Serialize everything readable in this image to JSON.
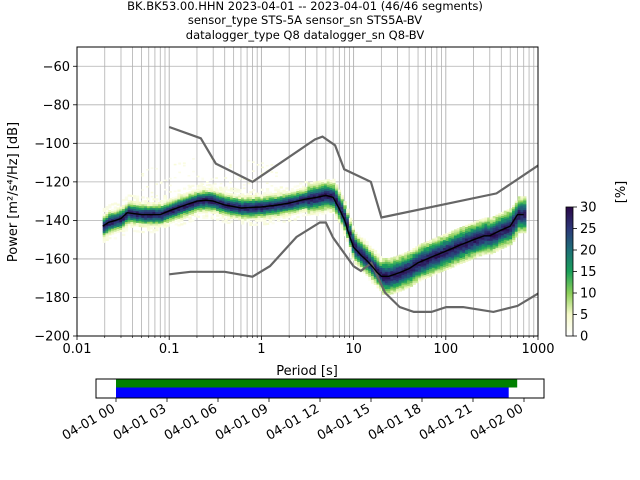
{
  "chart_data": {
    "type": "heatmap",
    "title_lines": [
      "BK.BK53.00.HHN   2023-04-01 -- 2023-04-01  (46/46 segments)",
      "sensor_type STS-5A sensor_sn STS5A-BV",
      "datalogger_type Q8 datalogger_sn Q8-BV"
    ],
    "xlabel": "Period [s]",
    "ylabel": "Power [m²/s⁴/Hz] [dB]",
    "x_scale": "log",
    "xlim": [
      0.01,
      1000
    ],
    "ylim": [
      -200,
      -50
    ],
    "x_ticks": [
      0.01,
      0.1,
      1,
      10,
      100,
      1000
    ],
    "x_tick_labels": [
      "0.01",
      "0.1",
      "1",
      "10",
      "100",
      "1000"
    ],
    "y_ticks": [
      -200,
      -180,
      -160,
      -140,
      -120,
      -100,
      -80,
      -60
    ],
    "y_tick_labels": [
      "−200",
      "−180",
      "−160",
      "−140",
      "−120",
      "−100",
      "−80",
      "−60"
    ],
    "grid": true,
    "colorbar": {
      "label": "[%]",
      "range": [
        0,
        30
      ],
      "ticks": [
        0,
        5,
        10,
        15,
        20,
        25,
        30
      ],
      "tick_labels": [
        "0",
        "5",
        "10",
        "15",
        "20",
        "25",
        "30"
      ]
    },
    "noise_model_high": {
      "name": "NHNM",
      "x": [
        0.1,
        0.22,
        0.32,
        0.8,
        3.8,
        4.6,
        6.3,
        7.9,
        15.4,
        20,
        354.8,
        1000
      ],
      "y": [
        -91.5,
        -97.4,
        -110.5,
        -120,
        -98,
        -96.5,
        -101,
        -113.5,
        -120,
        -138.5,
        -126,
        -111.5
      ]
    },
    "noise_model_low": {
      "name": "NLNM",
      "x": [
        0.1,
        0.17,
        0.4,
        0.8,
        1.24,
        2.4,
        4.3,
        5,
        6,
        10,
        12,
        15.6,
        21.9,
        31.6,
        45,
        70,
        101,
        154,
        328,
        600,
        1000
      ],
      "y": [
        -168,
        -166.7,
        -166.7,
        -169.2,
        -163.7,
        -148.6,
        -141.1,
        -141.1,
        -149,
        -163.8,
        -166.2,
        -162.1,
        -177.5,
        -185,
        -187.5,
        -187.5,
        -185,
        -185,
        -187.5,
        -184.4,
        -178
      ]
    },
    "mean_psd": {
      "name": "mean",
      "x": [
        0.019,
        0.022,
        0.026,
        0.03,
        0.035,
        0.05,
        0.08,
        0.1,
        0.15,
        0.2,
        0.25,
        0.3,
        0.4,
        0.6,
        1,
        1.5,
        2,
        3,
        4,
        5,
        6,
        7,
        8,
        9,
        10,
        11,
        12,
        14,
        16,
        18,
        20,
        24,
        28,
        32,
        40,
        50,
        70,
        100,
        140,
        200,
        260,
        300,
        400,
        500,
        600,
        700
      ],
      "y": [
        -143,
        -141,
        -140,
        -139,
        -136,
        -137,
        -137,
        -135,
        -132,
        -130,
        -129.5,
        -130,
        -132,
        -133.5,
        -133,
        -132,
        -131,
        -129,
        -128,
        -127,
        -128,
        -134,
        -140,
        -148,
        -154,
        -156,
        -158,
        -161,
        -164,
        -167,
        -169,
        -169,
        -168,
        -167,
        -165,
        -162,
        -159,
        -156,
        -153,
        -150,
        -148,
        -148,
        -145,
        -143,
        -137,
        -137
      ]
    },
    "time_segments": {
      "xlim": [
        "04-01 00",
        "04-02 00"
      ],
      "x_tick_labels": [
        "04-01 00",
        "04-01 03",
        "04-01 06",
        "04-01 09",
        "04-01 12",
        "04-01 15",
        "04-01 18",
        "04-01 21",
        "04-02 00"
      ],
      "x_ticks_hours": [
        0,
        3,
        6,
        9,
        12,
        15,
        18,
        21,
        24
      ],
      "data_available_hours": [
        0,
        23.6
      ],
      "psd_segments_hours": [
        0,
        23.1
      ],
      "segment_count": 46,
      "segment_total": 46
    }
  }
}
